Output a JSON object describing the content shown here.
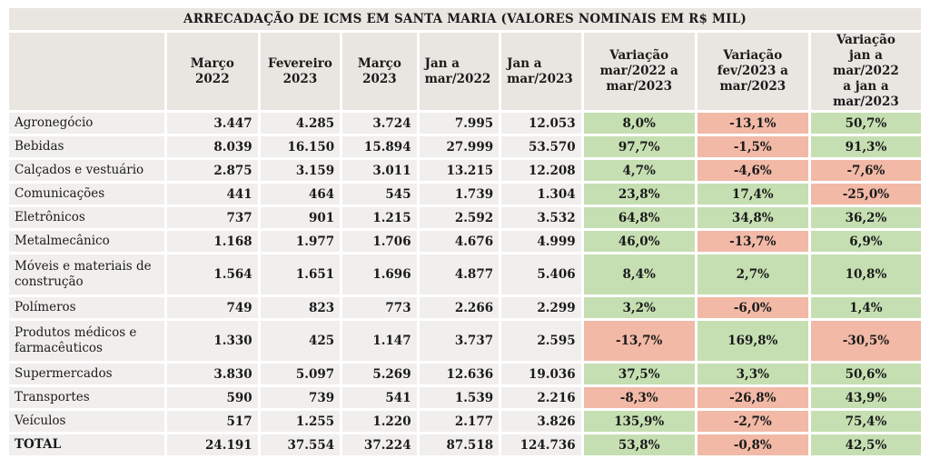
{
  "title": "ARRECADAÇÃO DE ICMS EM SANTA MARIA  (VALORES NOMINAIS EM R$ MIL)",
  "headers": [
    {
      "l1": "Março",
      "l2": "2022"
    },
    {
      "l1": "Fevereiro",
      "l2": "2023"
    },
    {
      "l1": "Março",
      "l2": "2023"
    },
    {
      "l1": "Jan a",
      "l2": "mar/2022"
    },
    {
      "l1": "Jan a",
      "l2": "mar/2023"
    },
    {
      "l1": "Variação",
      "l2": "mar/2022 a",
      "l3": "mar/2023"
    },
    {
      "l1": "Variação",
      "l2": "fev/2023 a",
      "l3": "mar/2023"
    },
    {
      "l1": "Variação",
      "l2": "jan a mar/2022",
      "l3": "a jan a mar/2023"
    }
  ],
  "rows": [
    {
      "cat": "Agronegócio",
      "v": [
        "3.447",
        "4.285",
        "3.724",
        "7.995",
        "12.053"
      ],
      "p": [
        "8,0%",
        "-13,1%",
        "50,7%"
      ]
    },
    {
      "cat": "Bebidas",
      "v": [
        "8.039",
        "16.150",
        "15.894",
        "27.999",
        "53.570"
      ],
      "p": [
        "97,7%",
        "-1,5%",
        "91,3%"
      ]
    },
    {
      "cat": "Calçados e vestuário",
      "v": [
        "2.875",
        "3.159",
        "3.011",
        "13.215",
        "12.208"
      ],
      "p": [
        "4,7%",
        "-4,6%",
        "-7,6%"
      ]
    },
    {
      "cat": "Comunicações",
      "v": [
        "441",
        "464",
        "545",
        "1.739",
        "1.304"
      ],
      "p": [
        "23,8%",
        "17,4%",
        "-25,0%"
      ]
    },
    {
      "cat": "Eletrônicos",
      "v": [
        "737",
        "901",
        "1.215",
        "2.592",
        "3.532"
      ],
      "p": [
        "64,8%",
        "34,8%",
        "36,2%"
      ]
    },
    {
      "cat": "Metalmecânico",
      "v": [
        "1.168",
        "1.977",
        "1.706",
        "4.676",
        "4.999"
      ],
      "p": [
        "46,0%",
        "-13,7%",
        "6,9%"
      ]
    },
    {
      "cat1": "Móveis e materiais de",
      "cat2": "construção",
      "v": [
        "1.564",
        "1.651",
        "1.696",
        "4.877",
        "5.406"
      ],
      "p": [
        "8,4%",
        "2,7%",
        "10,8%"
      ]
    },
    {
      "cat": "Polímeros",
      "v": [
        "749",
        "823",
        "773",
        "2.266",
        "2.299"
      ],
      "p": [
        "3,2%",
        "-6,0%",
        "1,4%"
      ]
    },
    {
      "cat1": "Produtos médicos e",
      "cat2": "farmacêuticos",
      "v": [
        "1.330",
        "425",
        "1.147",
        "3.737",
        "2.595"
      ],
      "p": [
        "-13,7%",
        "169,8%",
        "-30,5%"
      ]
    },
    {
      "cat": "Supermercados",
      "v": [
        "3.830",
        "5.097",
        "5.269",
        "12.636",
        "19.036"
      ],
      "p": [
        "37,5%",
        "3,3%",
        "50,6%"
      ]
    },
    {
      "cat": "Transportes",
      "v": [
        "590",
        "739",
        "541",
        "1.539",
        "2.216"
      ],
      "p": [
        "-8,3%",
        "-26,8%",
        "43,9%"
      ]
    },
    {
      "cat": "Veículos",
      "v": [
        "517",
        "1.255",
        "1.220",
        "2.177",
        "3.826"
      ],
      "p": [
        "135,9%",
        "-2,7%",
        "75,4%"
      ]
    }
  ],
  "total": {
    "cat": "TOTAL",
    "v": [
      "24.191",
      "37.554",
      "37.224",
      "87.518",
      "124.736"
    ],
    "p": [
      "53,8%",
      "-0,8%",
      "42,5%"
    ]
  },
  "colors": {
    "positive": "#c6dfb2",
    "negative": "#f1b9a6",
    "header": "#e9e5e0",
    "cell": "#f1efed"
  }
}
